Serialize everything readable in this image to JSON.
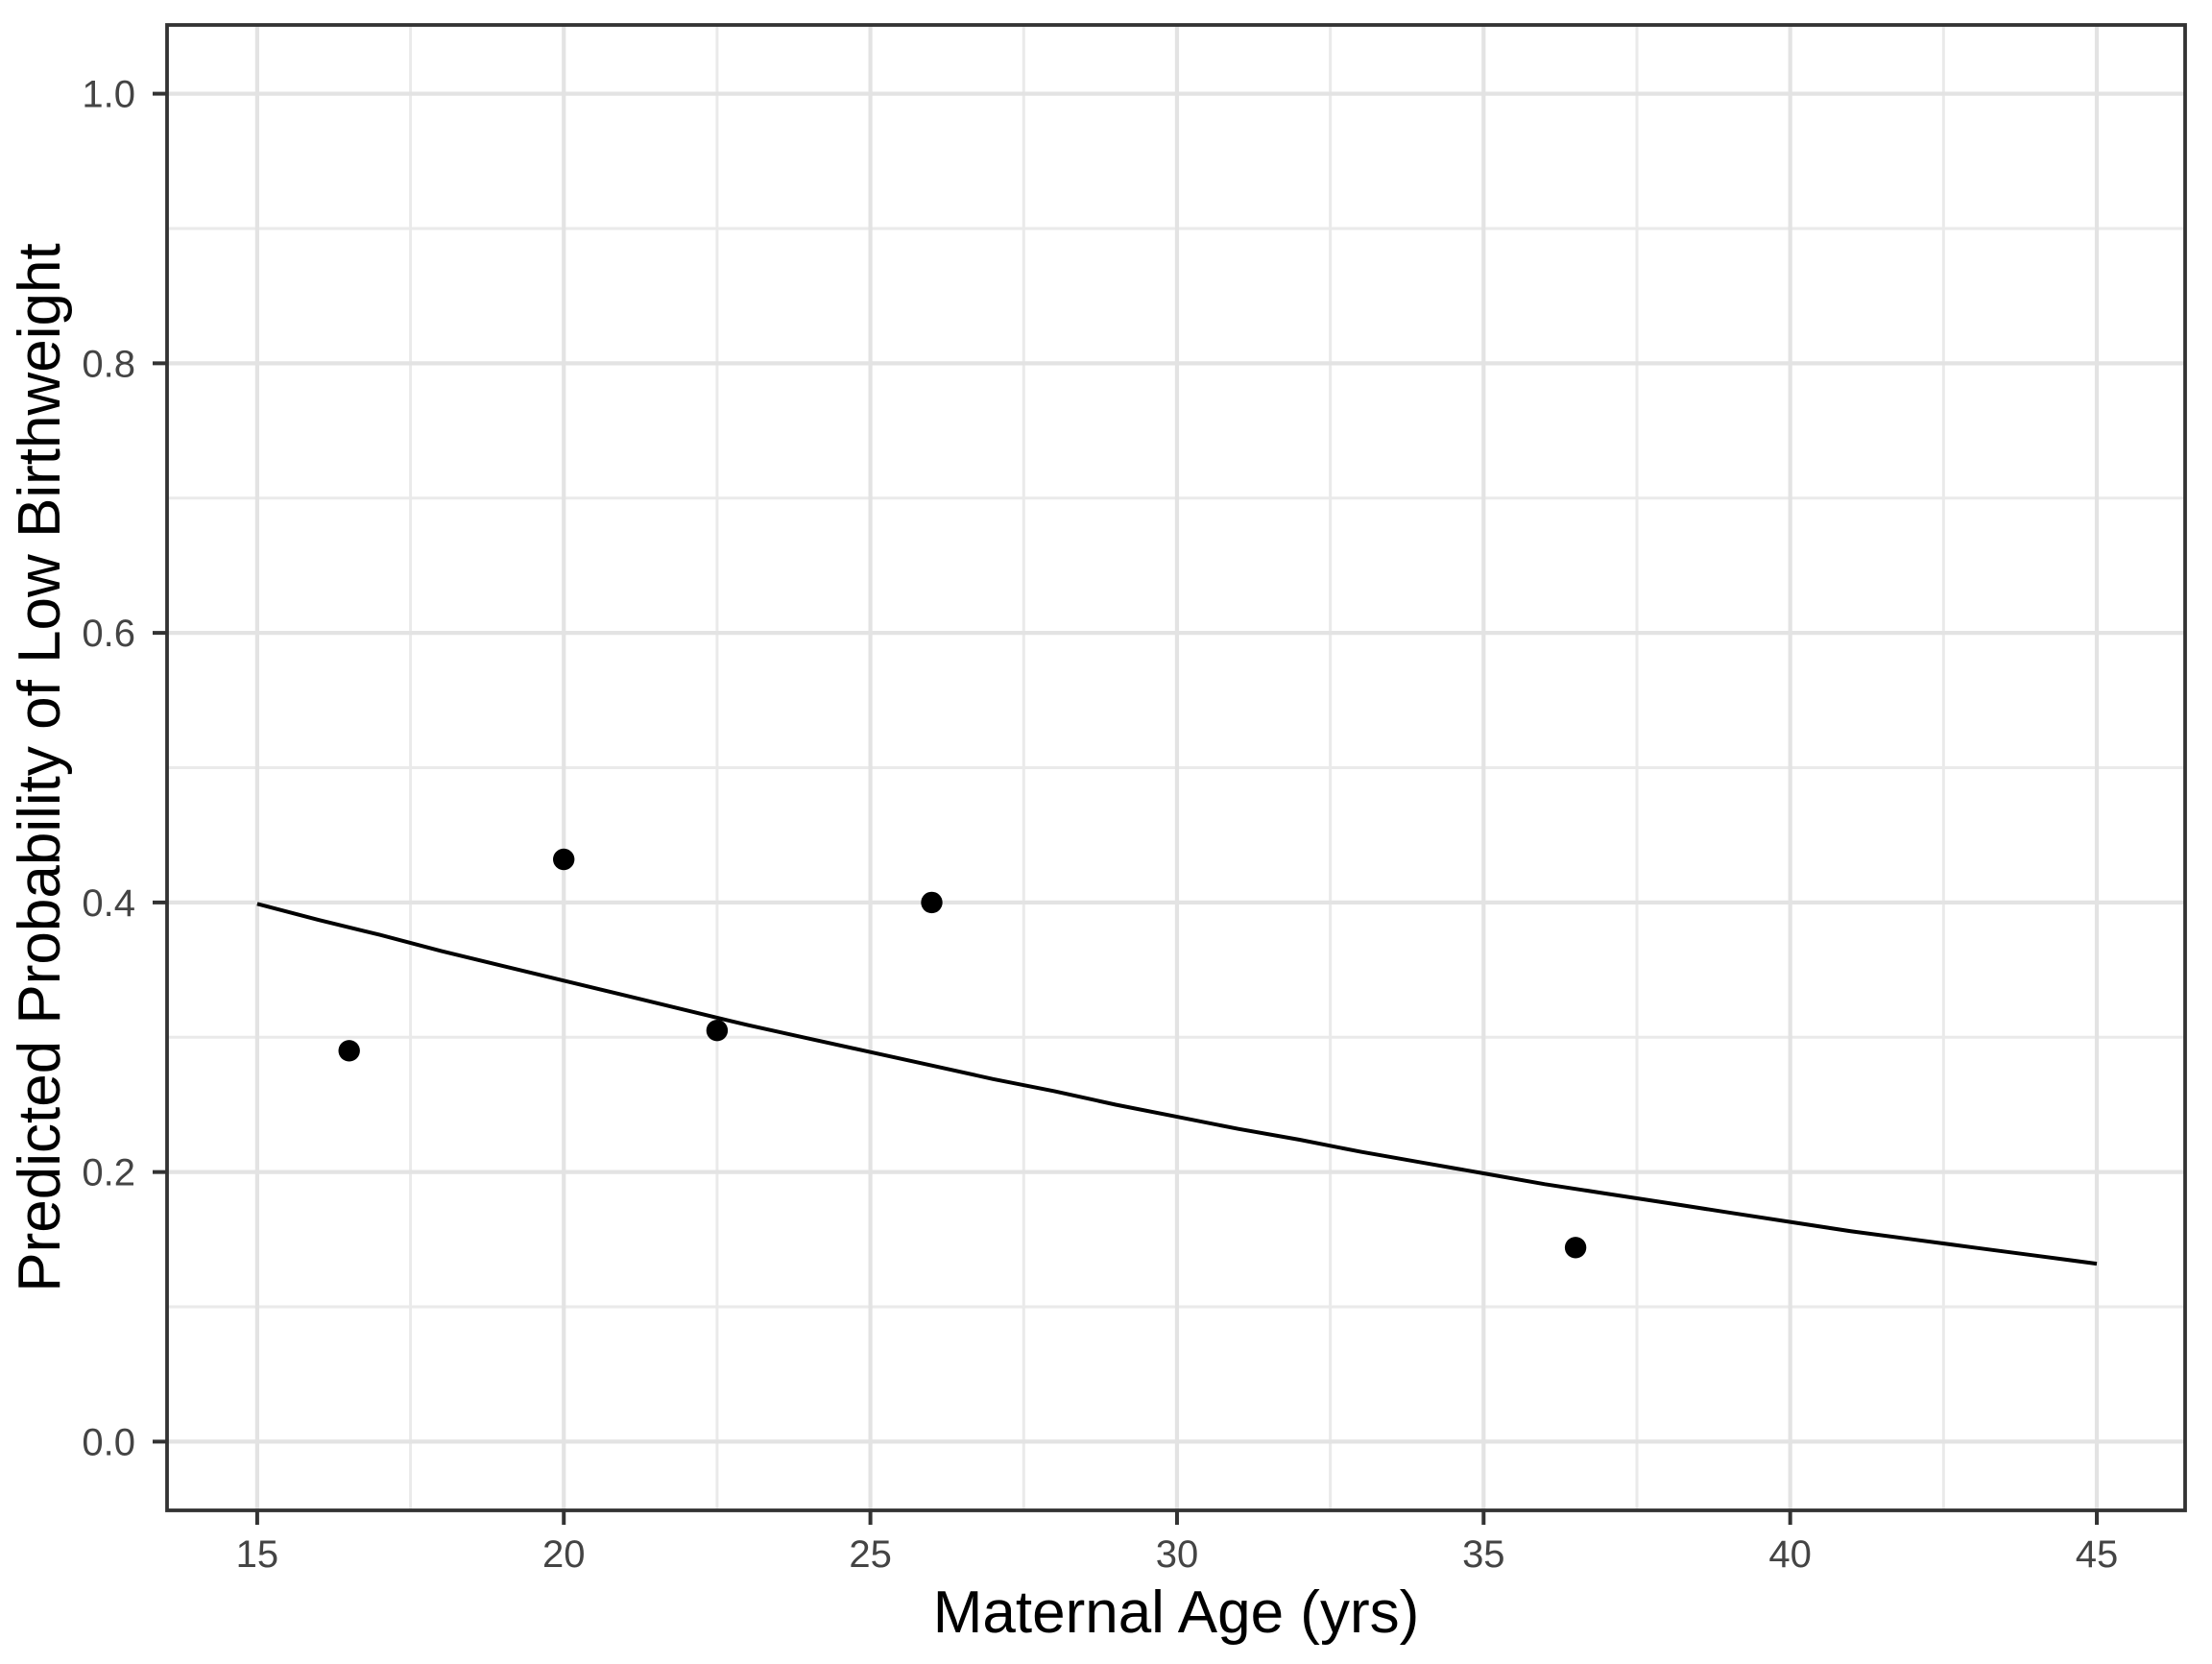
{
  "chart_data": {
    "type": "scatter",
    "title": "",
    "xlabel": "Maternal Age (yrs)",
    "ylabel": "Predicted Probability of Low Birthweight",
    "xlim": [
      13.53,
      46.44
    ],
    "ylim": [
      -0.051,
      1.051
    ],
    "grid": true,
    "legend_position": "none",
    "x_ticks": {
      "values": [
        15,
        20,
        25,
        30,
        35,
        40,
        45
      ],
      "labels": [
        "15",
        "20",
        "25",
        "30",
        "35",
        "40",
        "45"
      ]
    },
    "y_ticks": {
      "values": [
        0.0,
        0.2,
        0.4,
        0.6,
        0.8,
        1.0
      ],
      "labels": [
        "0.0",
        "0.2",
        "0.4",
        "0.6",
        "0.8",
        "1.0"
      ]
    },
    "x_minor": [
      17.5,
      22.5,
      27.5,
      32.5,
      37.5,
      42.5
    ],
    "y_minor": [
      0.1,
      0.3,
      0.5,
      0.7,
      0.9
    ],
    "series": [
      {
        "name": "observed-proportions",
        "type": "scatter",
        "points": [
          {
            "x": 16.5,
            "y": 0.29
          },
          {
            "x": 20.0,
            "y": 0.432
          },
          {
            "x": 22.5,
            "y": 0.305
          },
          {
            "x": 26.0,
            "y": 0.4
          },
          {
            "x": 36.5,
            "y": 0.144
          }
        ]
      },
      {
        "name": "logistic-fit-curve",
        "type": "line",
        "x": [
          15,
          16,
          17,
          18,
          19,
          20,
          21,
          22,
          23,
          24,
          25,
          26,
          27,
          28,
          29,
          30,
          31,
          32,
          33,
          34,
          35,
          36,
          37,
          38,
          39,
          40,
          41,
          42,
          43,
          44,
          45
        ],
        "y": [
          0.399,
          0.387,
          0.376,
          0.364,
          0.353,
          0.342,
          0.331,
          0.32,
          0.309,
          0.299,
          0.289,
          0.279,
          0.269,
          0.26,
          0.25,
          0.241,
          0.232,
          0.224,
          0.215,
          0.207,
          0.199,
          0.191,
          0.184,
          0.177,
          0.17,
          0.163,
          0.156,
          0.15,
          0.144,
          0.138,
          0.132
        ]
      }
    ],
    "colors": {
      "point": "#000000",
      "fit_line": "#000000",
      "grid_major": "#e3e3e3",
      "grid_minor": "#eaeaea",
      "panel_border": "#333333",
      "tick_mark": "#333333",
      "tick_label": "#444444",
      "axis_title": "#000000",
      "panel_background": "#ffffff"
    }
  }
}
